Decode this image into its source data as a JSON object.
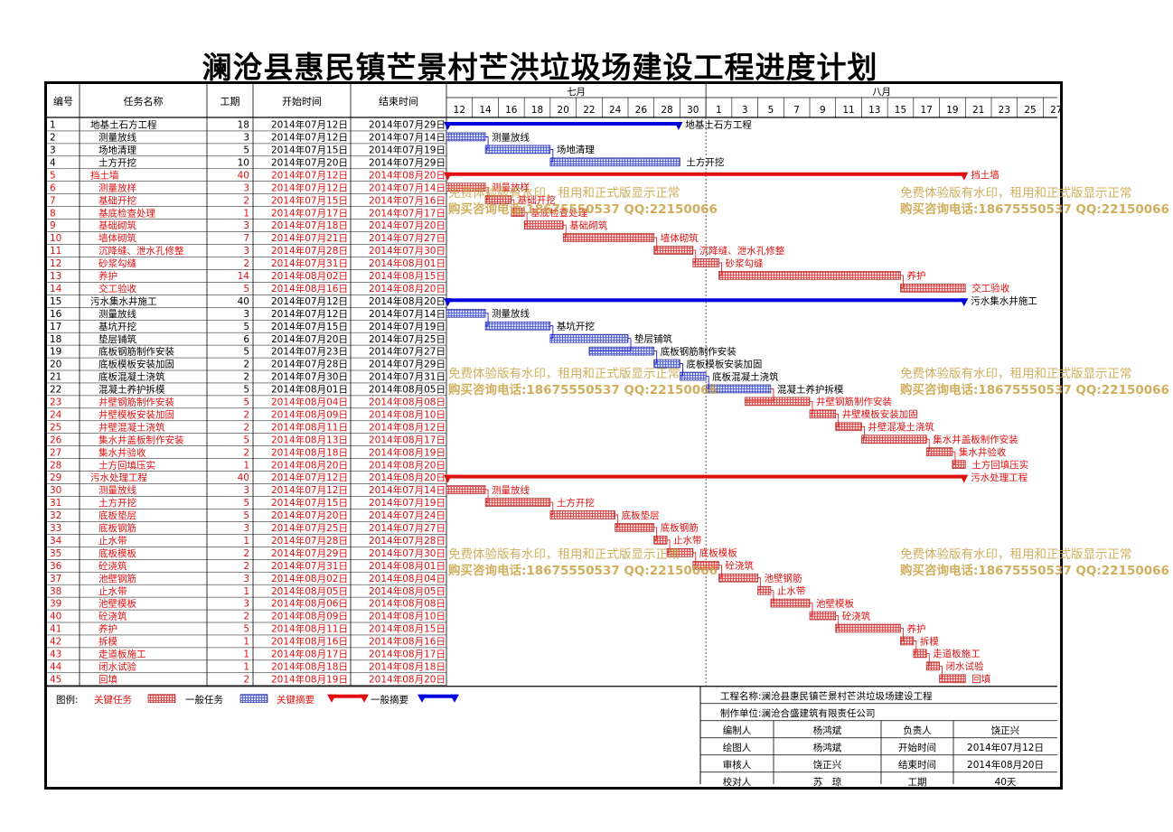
{
  "title": "澜沧县惠民镇芒景村芒洪垃圾场建设工程进度计划",
  "columns": {
    "id": "编号",
    "name": "任务名称",
    "duration": "工期",
    "start": "开始时间",
    "end": "结束时间"
  },
  "months": [
    {
      "label": "七月",
      "from": "2014-07-12",
      "to": "2014-07-31"
    },
    {
      "label": "八月",
      "from": "2014-08-01",
      "to": "2014-08-28"
    }
  ],
  "day_ticks": [
    "12",
    "14",
    "16",
    "18",
    "20",
    "22",
    "24",
    "26",
    "28",
    "30",
    "1",
    "3",
    "5",
    "7",
    "9",
    "11",
    "13",
    "15",
    "17",
    "19",
    "21",
    "23",
    "25",
    "27"
  ],
  "tasks": [
    {
      "id": "1",
      "name": "地基土石方工程",
      "duration": "18",
      "start": "2014年07月12日",
      "end": "2014年07月29日",
      "level": 0,
      "kind": "summary",
      "critical": false,
      "label": "地基土石方工程"
    },
    {
      "id": "2",
      "name": "测量放线",
      "duration": "3",
      "start": "2014年07月12日",
      "end": "2014年07月14日",
      "level": 1,
      "kind": "task",
      "critical": false,
      "label": "测量放线"
    },
    {
      "id": "3",
      "name": "场地清理",
      "duration": "5",
      "start": "2014年07月15日",
      "end": "2014年07月19日",
      "level": 1,
      "kind": "task",
      "critical": false,
      "label": "场地清理"
    },
    {
      "id": "4",
      "name": "土方开挖",
      "duration": "10",
      "start": "2014年07月20日",
      "end": "2014年07月29日",
      "level": 1,
      "kind": "task",
      "critical": false,
      "label": "土方开挖"
    },
    {
      "id": "5",
      "name": "挡土墙",
      "duration": "40",
      "start": "2014年07月12日",
      "end": "2014年08月20日",
      "level": 0,
      "kind": "summary",
      "critical": true,
      "label": "挡土墙"
    },
    {
      "id": "6",
      "name": "测量放样",
      "duration": "3",
      "start": "2014年07月12日",
      "end": "2014年07月14日",
      "level": 1,
      "kind": "task",
      "critical": true,
      "label": "测量放样"
    },
    {
      "id": "7",
      "name": "基础开挖",
      "duration": "2",
      "start": "2014年07月15日",
      "end": "2014年07月16日",
      "level": 1,
      "kind": "task",
      "critical": true,
      "label": "基础开挖"
    },
    {
      "id": "8",
      "name": "基底检查处理",
      "duration": "1",
      "start": "2014年07月17日",
      "end": "2014年07月17日",
      "level": 1,
      "kind": "task",
      "critical": true,
      "label": "基底检查处理"
    },
    {
      "id": "9",
      "name": "基础砌筑",
      "duration": "3",
      "start": "2014年07月18日",
      "end": "2014年07月20日",
      "level": 1,
      "kind": "task",
      "critical": true,
      "label": "基础砌筑"
    },
    {
      "id": "10",
      "name": "墙体砌筑",
      "duration": "7",
      "start": "2014年07月21日",
      "end": "2014年07月27日",
      "level": 1,
      "kind": "task",
      "critical": true,
      "label": "墙体砌筑"
    },
    {
      "id": "11",
      "name": "沉降缝、泄水孔修整",
      "duration": "3",
      "start": "2014年07月28日",
      "end": "2014年07月30日",
      "level": 1,
      "kind": "task",
      "critical": true,
      "label": "沉降缝、泄水孔修整"
    },
    {
      "id": "12",
      "name": "砂浆勾缝",
      "duration": "2",
      "start": "2014年07月31日",
      "end": "2014年08月01日",
      "level": 1,
      "kind": "task",
      "critical": true,
      "label": "砂浆勾缝"
    },
    {
      "id": "13",
      "name": "养护",
      "duration": "14",
      "start": "2014年08月02日",
      "end": "2014年08月15日",
      "level": 1,
      "kind": "task",
      "critical": true,
      "label": "养护"
    },
    {
      "id": "14",
      "name": "交工验收",
      "duration": "5",
      "start": "2014年08月16日",
      "end": "2014年08月20日",
      "level": 1,
      "kind": "task",
      "critical": true,
      "label": "交工验收"
    },
    {
      "id": "15",
      "name": "污水集水井施工",
      "duration": "40",
      "start": "2014年07月12日",
      "end": "2014年08月20日",
      "level": 0,
      "kind": "summary",
      "critical": false,
      "label": "污水集水井施工"
    },
    {
      "id": "16",
      "name": "测量放线",
      "duration": "3",
      "start": "2014年07月12日",
      "end": "2014年07月14日",
      "level": 1,
      "kind": "task",
      "critical": false,
      "label": "测量放线"
    },
    {
      "id": "17",
      "name": "基坑开挖",
      "duration": "5",
      "start": "2014年07月15日",
      "end": "2014年07月19日",
      "level": 1,
      "kind": "task",
      "critical": false,
      "label": "基坑开挖"
    },
    {
      "id": "18",
      "name": "垫层铺筑",
      "duration": "6",
      "start": "2014年07月20日",
      "end": "2014年07月25日",
      "level": 1,
      "kind": "task",
      "critical": false,
      "label": "垫层铺筑"
    },
    {
      "id": "19",
      "name": "底板钢筋制作安装",
      "duration": "5",
      "start": "2014年07月23日",
      "end": "2014年07月27日",
      "level": 1,
      "kind": "task",
      "critical": false,
      "label": "底板钢筋制作安装"
    },
    {
      "id": "20",
      "name": "底板模板安装加固",
      "duration": "2",
      "start": "2014年07月28日",
      "end": "2014年07月29日",
      "level": 1,
      "kind": "task",
      "critical": false,
      "label": "底板模板安装加固"
    },
    {
      "id": "21",
      "name": "底板混凝土浇筑",
      "duration": "2",
      "start": "2014年07月30日",
      "end": "2014年07月31日",
      "level": 1,
      "kind": "task",
      "critical": false,
      "label": "底板混凝土浇筑"
    },
    {
      "id": "22",
      "name": "混凝土养护拆模",
      "duration": "5",
      "start": "2014年08月01日",
      "end": "2014年08月05日",
      "level": 1,
      "kind": "task",
      "critical": false,
      "label": "混凝土养护拆模"
    },
    {
      "id": "23",
      "name": "井壁钢筋制作安装",
      "duration": "5",
      "start": "2014年08月04日",
      "end": "2014年08月08日",
      "level": 1,
      "kind": "task",
      "critical": true,
      "label": "井壁钢筋制作安装"
    },
    {
      "id": "24",
      "name": "井壁模板安装加固",
      "duration": "2",
      "start": "2014年08月09日",
      "end": "2014年08月10日",
      "level": 1,
      "kind": "task",
      "critical": true,
      "label": "井壁模板安装加固"
    },
    {
      "id": "25",
      "name": "井壁混凝土浇筑",
      "duration": "2",
      "start": "2014年08月11日",
      "end": "2014年08月12日",
      "level": 1,
      "kind": "task",
      "critical": true,
      "label": "井壁混凝土浇筑"
    },
    {
      "id": "26",
      "name": "集水井盖板制作安装",
      "duration": "5",
      "start": "2014年08月13日",
      "end": "2014年08月17日",
      "level": 1,
      "kind": "task",
      "critical": true,
      "label": "集水井盖板制作安装"
    },
    {
      "id": "27",
      "name": "集水井验收",
      "duration": "2",
      "start": "2014年08月18日",
      "end": "2014年08月19日",
      "level": 1,
      "kind": "task",
      "critical": true,
      "label": "集水井验收"
    },
    {
      "id": "28",
      "name": "土方回填压实",
      "duration": "1",
      "start": "2014年08月20日",
      "end": "2014年08月20日",
      "level": 1,
      "kind": "task",
      "critical": true,
      "label": "土方回填压实"
    },
    {
      "id": "29",
      "name": "污水处理工程",
      "duration": "40",
      "start": "2014年07月12日",
      "end": "2014年08月20日",
      "level": 0,
      "kind": "summary",
      "critical": true,
      "label": "污水处理工程"
    },
    {
      "id": "30",
      "name": "测量放线",
      "duration": "3",
      "start": "2014年07月12日",
      "end": "2014年07月14日",
      "level": 1,
      "kind": "task",
      "critical": true,
      "label": "测量放线"
    },
    {
      "id": "31",
      "name": "土方开挖",
      "duration": "5",
      "start": "2014年07月15日",
      "end": "2014年07月19日",
      "level": 1,
      "kind": "task",
      "critical": true,
      "label": "土方开挖"
    },
    {
      "id": "32",
      "name": "底板垫层",
      "duration": "5",
      "start": "2014年07月20日",
      "end": "2014年07月24日",
      "level": 1,
      "kind": "task",
      "critical": true,
      "label": "底板垫层"
    },
    {
      "id": "33",
      "name": "底板钢筋",
      "duration": "3",
      "start": "2014年07月25日",
      "end": "2014年07月27日",
      "level": 1,
      "kind": "task",
      "critical": true,
      "label": "底板钢筋"
    },
    {
      "id": "34",
      "name": "止水带",
      "duration": "1",
      "start": "2014年07月28日",
      "end": "2014年07月28日",
      "level": 1,
      "kind": "task",
      "critical": true,
      "label": "止水带"
    },
    {
      "id": "35",
      "name": "底板模板",
      "duration": "2",
      "start": "2014年07月29日",
      "end": "2014年07月30日",
      "level": 1,
      "kind": "task",
      "critical": true,
      "label": "底板模板"
    },
    {
      "id": "36",
      "name": "砼浇筑",
      "duration": "2",
      "start": "2014年07月31日",
      "end": "2014年08月01日",
      "level": 1,
      "kind": "task",
      "critical": true,
      "label": "砼浇筑"
    },
    {
      "id": "37",
      "name": "池壁钢筋",
      "duration": "3",
      "start": "2014年08月02日",
      "end": "2014年08月04日",
      "level": 1,
      "kind": "task",
      "critical": true,
      "label": "池壁钢筋"
    },
    {
      "id": "38",
      "name": "止水带",
      "duration": "1",
      "start": "2014年08月05日",
      "end": "2014年08月05日",
      "level": 1,
      "kind": "task",
      "critical": true,
      "label": "止水带"
    },
    {
      "id": "39",
      "name": "池壁模板",
      "duration": "3",
      "start": "2014年08月06日",
      "end": "2014年08月08日",
      "level": 1,
      "kind": "task",
      "critical": true,
      "label": "池壁模板"
    },
    {
      "id": "40",
      "name": "砼浇筑",
      "duration": "2",
      "start": "2014年08月09日",
      "end": "2014年08月10日",
      "level": 1,
      "kind": "task",
      "critical": true,
      "label": "砼浇筑"
    },
    {
      "id": "41",
      "name": "养护",
      "duration": "5",
      "start": "2014年08月11日",
      "end": "2014年08月15日",
      "level": 1,
      "kind": "task",
      "critical": true,
      "label": "养护"
    },
    {
      "id": "42",
      "name": "拆模",
      "duration": "1",
      "start": "2014年08月16日",
      "end": "2014年08月16日",
      "level": 1,
      "kind": "task",
      "critical": true,
      "label": "拆模"
    },
    {
      "id": "43",
      "name": "走道板施工",
      "duration": "1",
      "start": "2014年08月17日",
      "end": "2014年08月17日",
      "level": 1,
      "kind": "task",
      "critical": true,
      "label": "走道板施工"
    },
    {
      "id": "44",
      "name": "闭水试验",
      "duration": "1",
      "start": "2014年08月18日",
      "end": "2014年08月18日",
      "level": 1,
      "kind": "task",
      "critical": true,
      "label": "闭水试验"
    },
    {
      "id": "45",
      "name": "回填",
      "duration": "2",
      "start": "2014年08月19日",
      "end": "2014年08月20日",
      "level": 1,
      "kind": "task",
      "critical": true,
      "label": "回填"
    }
  ],
  "legend": {
    "title": "图例:",
    "items": [
      "关键任务",
      "一般任务",
      "关键摘要",
      "一般摘要"
    ]
  },
  "info": {
    "project_label": "工程名称:",
    "project": "澜沧县惠民镇芒景村芒洪垃圾场建设工程",
    "unit_label": "制作单位:",
    "unit": "澜沧合盛建筑有限责任公司",
    "rows": [
      [
        "编制人",
        "杨鸿斌",
        "负责人",
        "饶正兴"
      ],
      [
        "绘图人",
        "杨鸿斌",
        "开始时间",
        "2014年07月12日"
      ],
      [
        "审核人",
        "饶正兴",
        "结束时间",
        "2014年08月20日"
      ],
      [
        "校对人",
        "苏　琼",
        "工期",
        "40天"
      ]
    ]
  },
  "watermark": {
    "line1": "免费体验版有水印，租用和正式版显示正常",
    "line2": "购买咨询电话:18675550537 QQ:22150066"
  },
  "colors": {
    "critical": "#e01010",
    "critical_bar": "#d84444",
    "normal": "#0000e0",
    "normal_bar": "#4f5fd0",
    "watermark": "#c8a040"
  },
  "chart_data": {
    "type": "gantt",
    "x_start": "2014-07-12",
    "x_end": "2014-08-28"
  }
}
